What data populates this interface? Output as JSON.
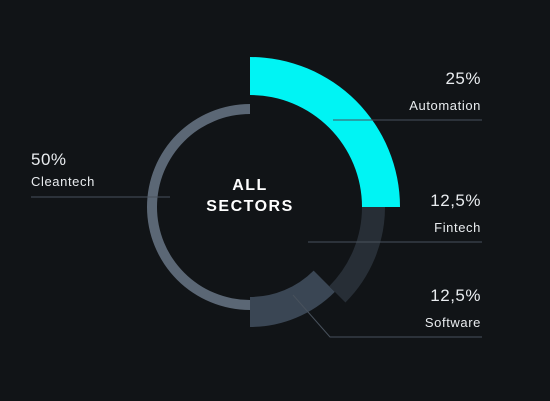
{
  "chart_data": {
    "type": "pie",
    "center_label": [
      "ALL",
      "SECTORS"
    ],
    "slices": [
      {
        "label": "Automation",
        "value": 25,
        "display": "25%",
        "color": "#00f4f4"
      },
      {
        "label": "Fintech",
        "value": 12.5,
        "display": "12,5%",
        "color": "#272e36"
      },
      {
        "label": "Software",
        "value": 12.5,
        "display": "12,5%",
        "color": "#3a4654"
      },
      {
        "label": "Cleantech",
        "value": 50,
        "display": "50%",
        "color": "#5b6775"
      }
    ],
    "label_line_color": "#48515c",
    "background": "#111417"
  }
}
